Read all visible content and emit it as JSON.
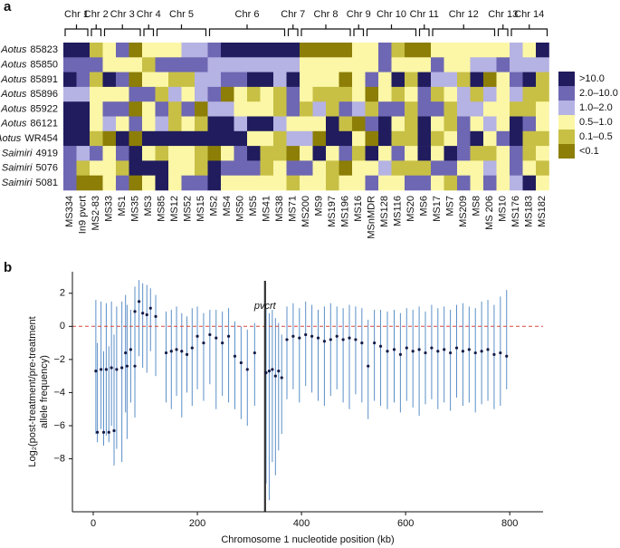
{
  "chart_data": [
    {
      "type": "heatmap",
      "panel": "a",
      "rows": [
        {
          "genus": "Aotus",
          "id": "85823"
        },
        {
          "genus": "Aotus",
          "id": "85850"
        },
        {
          "genus": "Aotus",
          "id": "85891"
        },
        {
          "genus": "Aotus",
          "id": "85896"
        },
        {
          "genus": "Aotus",
          "id": "85922"
        },
        {
          "genus": "Aotus",
          "id": "86121"
        },
        {
          "genus": "Aotus",
          "id": "WR454"
        },
        {
          "genus": "Saimiri",
          "id": "4919"
        },
        {
          "genus": "Saimiri",
          "id": "5076"
        },
        {
          "genus": "Saimiri",
          "id": "5081"
        }
      ],
      "chromosomes": [
        {
          "name": "Chr 1",
          "markers": [
            "MS334",
            "In9 pvcrt"
          ]
        },
        {
          "name": "Chr 2",
          "markers": [
            "MS2-83"
          ]
        },
        {
          "name": "Chr 3",
          "markers": [
            "MS33",
            "MS1",
            "MS35"
          ]
        },
        {
          "name": "Chr 4",
          "markers": [
            "MS3"
          ]
        },
        {
          "name": "Chr 5",
          "markers": [
            "MS85",
            "MS12",
            "MS52",
            "MS15"
          ]
        },
        {
          "name": "Chr 6",
          "markers": [
            "MS2",
            "MS4",
            "MS50",
            "MS5",
            "MS41",
            "MS38"
          ]
        },
        {
          "name": "Chr 7",
          "markers": [
            "MS71"
          ]
        },
        {
          "name": "Chr 8",
          "markers": [
            "MS200",
            "MS9",
            "MS197",
            "MS196"
          ]
        },
        {
          "name": "Chr 9",
          "markers": [
            "MS16"
          ]
        },
        {
          "name": "Chr 10",
          "markers": [
            "MSnMDR",
            "MS128",
            "MS116",
            "MS20"
          ]
        },
        {
          "name": "Chr 11",
          "markers": [
            "MS6"
          ]
        },
        {
          "name": "Chr 12",
          "markers": [
            "MS17",
            "MS7",
            "MS209",
            "MS8",
            "MS 206"
          ]
        },
        {
          "name": "Chr 13",
          "markers": [
            "MS10"
          ]
        },
        {
          "name": "Chr 14",
          "markers": [
            "MS176",
            "MS183",
            "MS182"
          ]
        }
      ],
      "levels": [
        {
          "label": ">10.0",
          "color": "#201c5e"
        },
        {
          "label": "2.0–10.0",
          "color": "#6e67b3"
        },
        {
          "label": "1.0–2.0",
          "color": "#b5b2e4"
        },
        {
          "label": "0.5–1.0",
          "color": "#fbf7a6"
        },
        {
          "label": "0.1–0.5",
          "color": "#c8c045"
        },
        {
          "label": "<0.1",
          "color": "#8c7e06"
        }
      ],
      "cells": [
        [
          0,
          0,
          4,
          3,
          1,
          5,
          3,
          3,
          3,
          2,
          2,
          1,
          0,
          0,
          0,
          0,
          0,
          0,
          5,
          5,
          5,
          5,
          3,
          3,
          1,
          4,
          5,
          5,
          3,
          3,
          3,
          3,
          3,
          3,
          2,
          3,
          0
        ],
        [
          1,
          1,
          1,
          3,
          3,
          3,
          4,
          1,
          1,
          1,
          1,
          2,
          2,
          2,
          2,
          2,
          2,
          2,
          3,
          3,
          3,
          3,
          3,
          3,
          1,
          3,
          3,
          3,
          1,
          3,
          3,
          2,
          2,
          1,
          2,
          2,
          2
        ],
        [
          0,
          1,
          4,
          0,
          1,
          5,
          3,
          3,
          4,
          4,
          2,
          2,
          1,
          1,
          0,
          0,
          2,
          0,
          3,
          3,
          3,
          5,
          3,
          1,
          3,
          0,
          4,
          0,
          2,
          2,
          4,
          0,
          5,
          3,
          1,
          0,
          4
        ],
        [
          2,
          2,
          3,
          3,
          3,
          1,
          1,
          4,
          2,
          3,
          2,
          1,
          5,
          3,
          4,
          3,
          4,
          1,
          3,
          4,
          4,
          4,
          3,
          5,
          3,
          4,
          3,
          1,
          4,
          3,
          2,
          4,
          2,
          3,
          2,
          4,
          4
        ],
        [
          0,
          0,
          3,
          1,
          1,
          5,
          3,
          1,
          4,
          1,
          5,
          2,
          2,
          3,
          3,
          3,
          4,
          1,
          4,
          2,
          4,
          1,
          2,
          4,
          1,
          1,
          4,
          1,
          1,
          4,
          2,
          2,
          3,
          3,
          4,
          4,
          3
        ],
        [
          0,
          0,
          3,
          2,
          3,
          1,
          3,
          2,
          4,
          3,
          4,
          0,
          0,
          2,
          0,
          0,
          2,
          3,
          3,
          3,
          0,
          4,
          5,
          1,
          0,
          3,
          4,
          0,
          3,
          4,
          1,
          3,
          2,
          3,
          0,
          1,
          3
        ],
        [
          0,
          0,
          4,
          5,
          0,
          5,
          0,
          0,
          0,
          0,
          0,
          0,
          0,
          0,
          3,
          3,
          4,
          2,
          2,
          5,
          0,
          0,
          3,
          5,
          0,
          4,
          4,
          0,
          4,
          3,
          1,
          0,
          3,
          1,
          0,
          4,
          4
        ],
        [
          1,
          2,
          1,
          3,
          1,
          0,
          3,
          4,
          3,
          3,
          4,
          5,
          3,
          1,
          0,
          4,
          4,
          5,
          3,
          0,
          3,
          1,
          4,
          0,
          3,
          1,
          3,
          0,
          3,
          0,
          1,
          4,
          4,
          3,
          1,
          4,
          3
        ],
        [
          1,
          4,
          3,
          3,
          4,
          0,
          0,
          0,
          3,
          3,
          4,
          0,
          1,
          1,
          1,
          4,
          3,
          1,
          1,
          3,
          4,
          5,
          3,
          3,
          2,
          4,
          4,
          4,
          1,
          1,
          3,
          3,
          2,
          3,
          1,
          3,
          4
        ],
        [
          1,
          5,
          5,
          3,
          1,
          5,
          3,
          0,
          3,
          1,
          1,
          0,
          3,
          3,
          3,
          3,
          3,
          4,
          3,
          3,
          4,
          3,
          3,
          1,
          3,
          3,
          1,
          1,
          3,
          4,
          1,
          3,
          1,
          3,
          2,
          0,
          3
        ]
      ]
    },
    {
      "type": "errorbar",
      "panel": "b",
      "annotation": {
        "label": "pvcrt",
        "x": 330
      },
      "xlabel": "Chromosome 1 nucleotide position (kb)",
      "ylabel": [
        "Log₂(post-treatment/pre-treatment",
        "allele frequency)"
      ],
      "xlim": [
        -40,
        864
      ],
      "ylim": [
        -11.2,
        3.3
      ],
      "xticks": [
        0,
        200,
        400,
        600,
        800
      ],
      "yticks": [
        2,
        0,
        {
          "value": -2,
          "label": "−2"
        },
        {
          "value": -4,
          "label": "−4"
        },
        {
          "value": -6,
          "label": "−6"
        },
        {
          "value": -8,
          "label": "−8"
        }
      ],
      "bar_color": "#5b8fc8",
      "point_color": "#151a45",
      "reference_color": "#d8473f",
      "x": [
        5,
        15,
        25,
        35,
        45,
        55,
        65,
        80,
        8,
        20,
        30,
        40,
        62,
        72,
        80,
        88,
        95,
        103,
        110,
        120,
        140,
        150,
        160,
        170,
        180,
        190,
        200,
        212,
        224,
        236,
        248,
        260,
        272,
        284,
        296,
        310,
        332,
        338,
        344,
        350,
        356,
        362,
        372,
        384,
        396,
        408,
        420,
        432,
        444,
        456,
        468,
        480,
        492,
        504,
        516,
        528,
        540,
        552,
        565,
        578,
        590,
        602,
        614,
        626,
        638,
        650,
        662,
        674,
        686,
        698,
        710,
        722,
        734,
        746,
        758,
        770,
        782,
        794
      ],
      "y": [
        -2.7,
        -2.6,
        -2.6,
        -2.5,
        -2.6,
        -2.5,
        -2.4,
        -2.4,
        -6.4,
        -6.4,
        -6.4,
        -6.3,
        -1.6,
        -1.4,
        0.9,
        1.5,
        0.8,
        0.7,
        1.1,
        0.6,
        -1.6,
        -1.5,
        -1.4,
        -1.5,
        -1.7,
        -1.3,
        -0.6,
        -1.0,
        -0.5,
        -0.7,
        -1.0,
        -0.6,
        -1.8,
        -2.2,
        -2.6,
        -1.6,
        -2.8,
        -2.7,
        -2.6,
        -3.0,
        -2.7,
        -3.1,
        -0.8,
        -0.6,
        -0.7,
        -0.5,
        -0.6,
        -0.7,
        -0.9,
        -0.8,
        -0.6,
        -0.8,
        -0.7,
        -0.8,
        -1.0,
        -2.4,
        -1.0,
        -1.2,
        -1.5,
        -1.4,
        -1.7,
        -1.3,
        -1.5,
        -1.4,
        -1.6,
        -1.3,
        -1.5,
        -1.4,
        -1.6,
        -1.3,
        -1.5,
        -1.4,
        -1.6,
        -1.5,
        -1.4,
        -1.7,
        -1.6,
        -1.8
      ],
      "lower": [
        -6.5,
        -6.2,
        -6.6,
        -6.0,
        -7.4,
        -8.2,
        -6.8,
        -5.5,
        -7.0,
        -7.2,
        -7.0,
        -8.4,
        -5.2,
        -4.6,
        -3.2,
        -1.8,
        -2.5,
        -2.8,
        -1.5,
        -3.0,
        -4.6,
        -5.0,
        -4.2,
        -5.5,
        -4.0,
        -4.8,
        -3.8,
        -4.5,
        -3.5,
        -5.0,
        -4.2,
        -4.6,
        -5.0,
        -5.6,
        -6.0,
        -4.8,
        -9.5,
        -10.5,
        -8.2,
        -9.0,
        -7.5,
        -6.5,
        -4.4,
        -3.8,
        -4.6,
        -3.6,
        -4.0,
        -4.5,
        -4.8,
        -4.2,
        -3.8,
        -4.6,
        -5.0,
        -4.1,
        -4.6,
        -5.6,
        -4.5,
        -4.8,
        -5.0,
        -4.6,
        -5.2,
        -4.5,
        -4.9,
        -5.4,
        -4.7,
        -4.4,
        -5.0,
        -4.6,
        -5.1,
        -4.3,
        -4.8,
        -4.6,
        -5.2,
        -4.7,
        -4.5,
        -5.0,
        -4.8,
        -3.8
      ],
      "upper": [
        1.6,
        1.5,
        1.4,
        1.5,
        1.2,
        1.5,
        1.3,
        1.6,
        -1.0,
        -1.5,
        -1.2,
        -0.5,
        1.9,
        1.0,
        2.4,
        2.8,
        2.6,
        2.5,
        2.3,
        1.9,
        0.9,
        1.0,
        1.2,
        0.8,
        0.6,
        1.1,
        1.2,
        0.8,
        1.0,
        1.0,
        0.9,
        1.1,
        0.3,
        0.0,
        -0.2,
        0.2,
        1.1,
        0.8,
        1.0,
        0.5,
        0.2,
        -0.5,
        1.2,
        1.4,
        1.1,
        1.5,
        1.3,
        1.0,
        1.2,
        1.4,
        1.2,
        1.1,
        1.3,
        1.2,
        1.1,
        0.4,
        1.0,
        1.0,
        0.9,
        1.0,
        0.8,
        1.1,
        1.0,
        1.2,
        0.9,
        1.3,
        1.1,
        1.2,
        1.0,
        1.3,
        1.4,
        1.2,
        1.1,
        1.5,
        1.6,
        1.3,
        1.8,
        2.2
      ]
    }
  ]
}
